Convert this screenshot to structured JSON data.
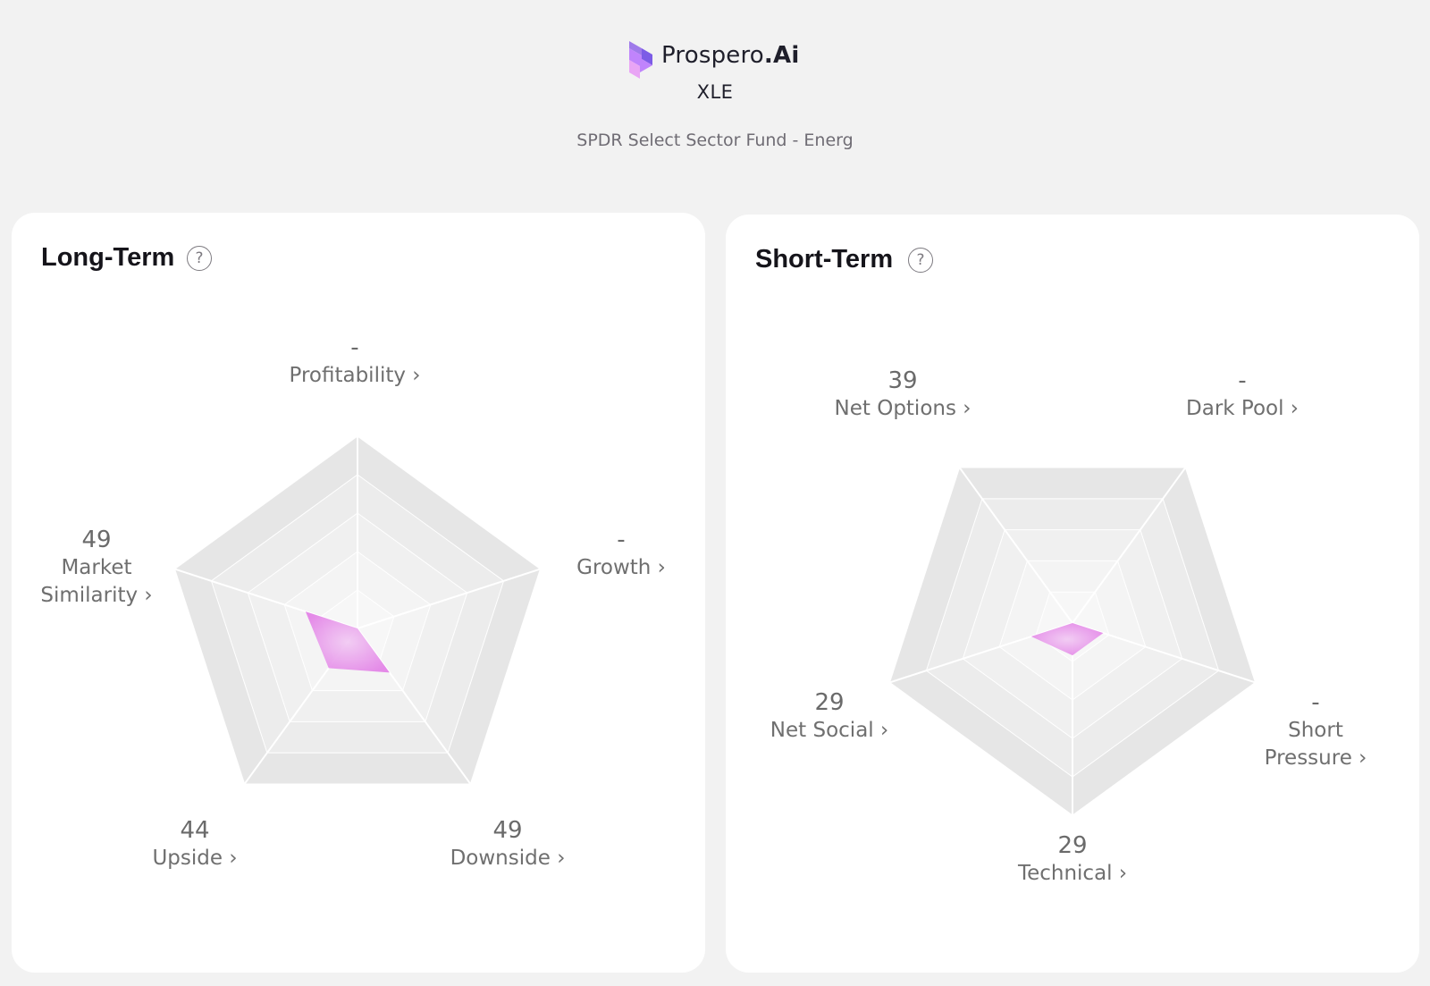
{
  "header": {
    "brand_name": "Prospero",
    "brand_suffix": ".Ai",
    "ticker": "XLE",
    "fund_name": "SPDR Select Sector Fund - Energ"
  },
  "colors": {
    "background": "#f2f2f2",
    "card": "#ffffff",
    "radar_fill": "#e27ee6",
    "logo_purple": "#8b5cf6"
  },
  "long_term": {
    "title": "Long-Term",
    "help": "?",
    "axes": [
      {
        "value": "-",
        "label": "Profitability ›"
      },
      {
        "value": "-",
        "label": "Growth ›"
      },
      {
        "value": "49",
        "label": "Downside ›"
      },
      {
        "value": "44",
        "label": "Upside ›"
      },
      {
        "value": "49",
        "label": "Market\nSimilarity ›"
      }
    ]
  },
  "short_term": {
    "title": "Short-Term",
    "help": "?",
    "axes": [
      {
        "value": "-",
        "label": "Dark Pool ›"
      },
      {
        "value": "-",
        "label": "Short\nPressure ›"
      },
      {
        "value": "29",
        "label": "Technical ›"
      },
      {
        "value": "29",
        "label": "Net Social ›"
      },
      {
        "value": "39",
        "label": "Net Options ›"
      }
    ]
  }
}
